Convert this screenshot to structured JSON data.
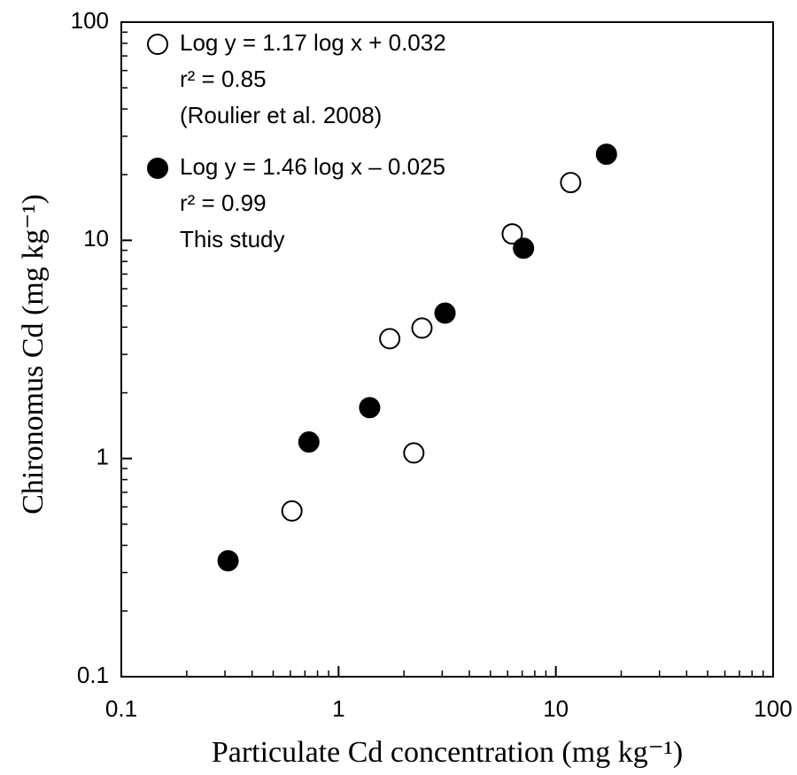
{
  "chart_data": {
    "type": "scatter",
    "log_x": true,
    "log_y": true,
    "xlabel": "Particulate Cd concentration (mg kg⁻¹)",
    "ylabel": "Chironomus Cd (mg kg⁻¹)",
    "xlim": [
      0.1,
      100
    ],
    "ylim": [
      0.1,
      100
    ],
    "xticks": [
      0.1,
      1,
      10,
      100
    ],
    "yticks": [
      0.1,
      1,
      10,
      100
    ],
    "minor_xticks": [
      0.2,
      0.3,
      0.4,
      0.5,
      0.6,
      0.7,
      0.8,
      0.9,
      2,
      3,
      4,
      5,
      6,
      7,
      8,
      9,
      20,
      30,
      40,
      50,
      60,
      70,
      80,
      90
    ],
    "minor_yticks": [
      0.2,
      0.3,
      0.4,
      0.5,
      0.6,
      0.7,
      0.8,
      0.9,
      2,
      3,
      4,
      5,
      6,
      7,
      8,
      9,
      20,
      30,
      40,
      50,
      60,
      70,
      80,
      90
    ],
    "legend": "upper left",
    "series": [
      {
        "name": "Log y = 1.17 log x + 0.032",
        "notes": [
          "r² = 0.85",
          "(Roulier et al. 2008)"
        ],
        "color": "#ffffff",
        "edgecolor": "#000000",
        "x": [
          0.61,
          1.72,
          2.42,
          2.22,
          6.3,
          11.7
        ],
        "values": [
          0.575,
          3.54,
          3.96,
          1.06,
          10.7,
          18.4
        ]
      },
      {
        "name": "Log y = 1.46 log x – 0.025",
        "notes": [
          "r² = 0.99",
          "This study"
        ],
        "color": "#000000",
        "edgecolor": "#000000",
        "x": [
          0.31,
          0.73,
          1.39,
          3.09,
          7.1,
          17.1
        ],
        "values": [
          0.34,
          1.19,
          1.71,
          4.64,
          9.2,
          24.8
        ]
      }
    ]
  }
}
